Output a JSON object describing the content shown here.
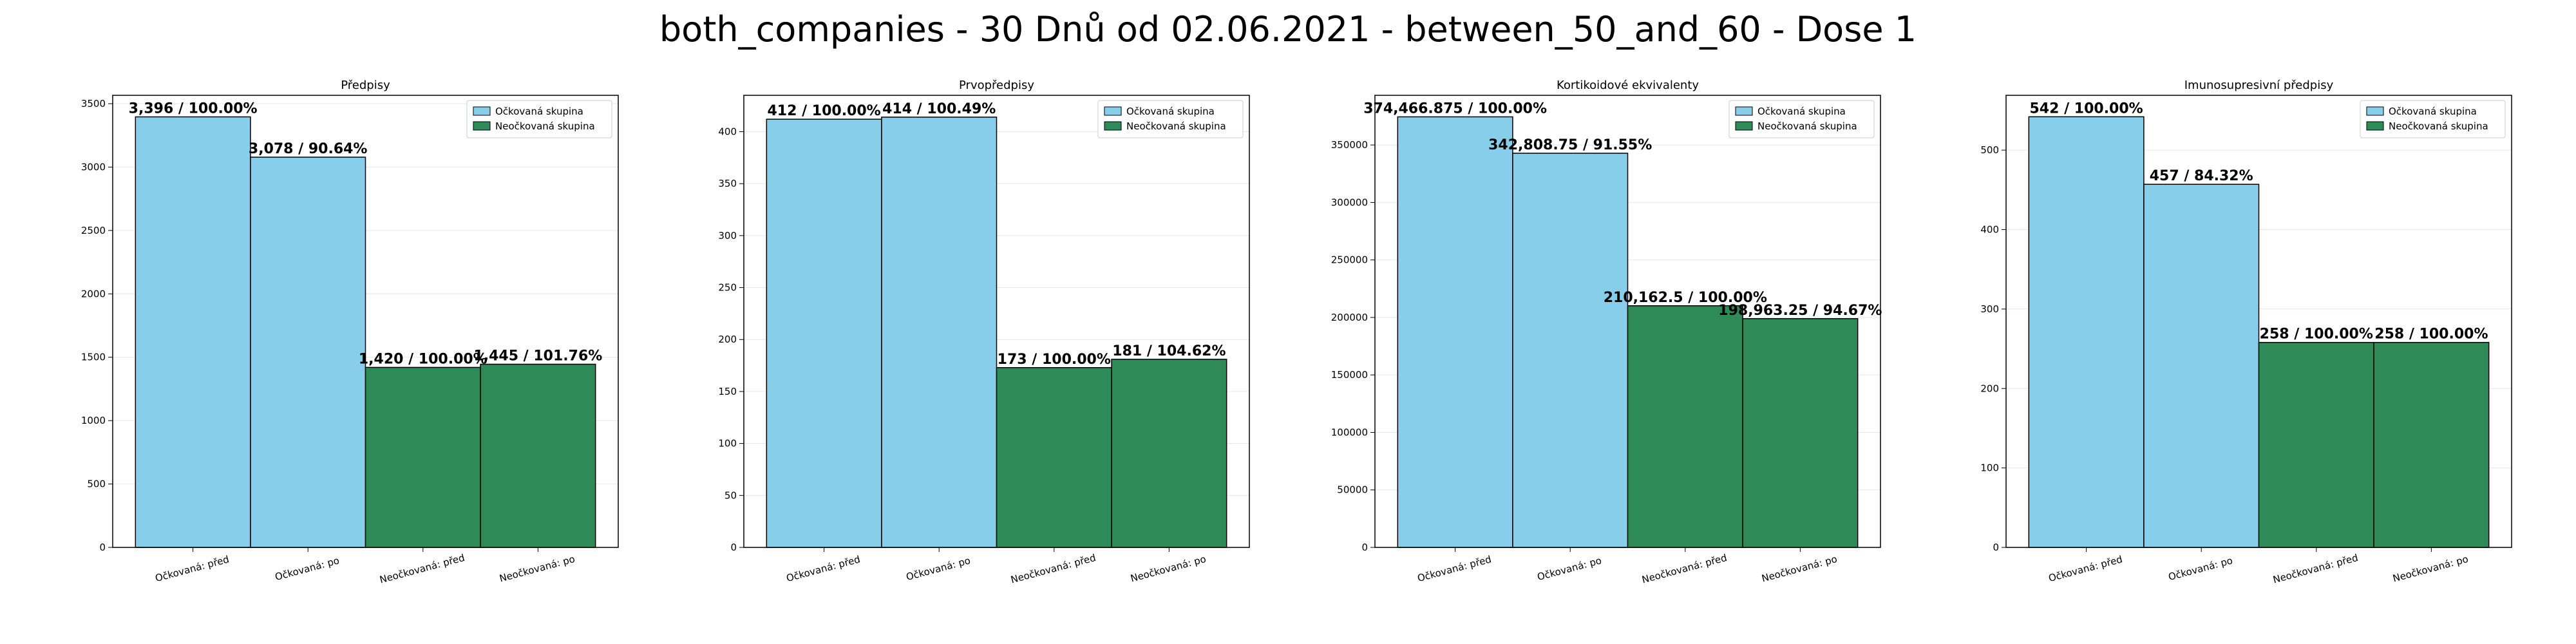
{
  "suptitle": "both_companies - 30 Dnů od 02.06.2021 - between_50_and_60 - Dose 1",
  "colors": {
    "vaccinated": "#87ceeb",
    "unvaccinated": "#2e8b57",
    "edge": "#000000",
    "grid": "#e6e6e6"
  },
  "chart_data": [
    {
      "type": "bar",
      "title": "Předpisy",
      "categories": [
        "Očkovaná: před",
        "Očkovaná: po",
        "Neočkovaná: před",
        "Neočkovaná: po"
      ],
      "values": [
        3396,
        3078,
        1420,
        1445
      ],
      "value_labels": [
        "3,396 / 100.00%",
        "3,078 / 90.64%",
        "1,420 / 100.00%",
        "1,445 / 101.76%"
      ],
      "bar_groups": [
        "vaccinated",
        "vaccinated",
        "unvaccinated",
        "unvaccinated"
      ],
      "legend": [
        "Očkovaná skupina",
        "Neočkovaná skupina"
      ],
      "legend_position": "upper right",
      "ylim": [
        0,
        3566
      ],
      "yticks": [
        0,
        500,
        1000,
        1500,
        2000,
        2500,
        3000,
        3500
      ],
      "ytick_labels": [
        "0",
        "500",
        "1000",
        "1500",
        "2000",
        "2500",
        "3000",
        "3500"
      ],
      "grid": "y"
    },
    {
      "type": "bar",
      "title": "Prvopředpisy",
      "categories": [
        "Očkovaná: před",
        "Očkovaná: po",
        "Neočkovaná: před",
        "Neočkovaná: po"
      ],
      "values": [
        412,
        414,
        173,
        181
      ],
      "value_labels": [
        "412 / 100.00%",
        "414 / 100.49%",
        "173 / 100.00%",
        "181 / 104.62%"
      ],
      "bar_groups": [
        "vaccinated",
        "vaccinated",
        "unvaccinated",
        "unvaccinated"
      ],
      "legend": [
        "Očkovaná skupina",
        "Neočkovaná skupina"
      ],
      "legend_position": "upper right",
      "ylim": [
        0,
        435
      ],
      "yticks": [
        0,
        50,
        100,
        150,
        200,
        250,
        300,
        350,
        400
      ],
      "ytick_labels": [
        "0",
        "50",
        "100",
        "150",
        "200",
        "250",
        "300",
        "350",
        "400"
      ],
      "grid": "y"
    },
    {
      "type": "bar",
      "title": "Kortikoidové ekvivalenty",
      "categories": [
        "Očkovaná: před",
        "Očkovaná: po",
        "Neočkovaná: před",
        "Neočkovaná: po"
      ],
      "values": [
        374466.875,
        342808.75,
        210162.5,
        198963.25
      ],
      "value_labels": [
        "374,466.875 / 100.00%",
        "342,808.75 / 91.55%",
        "210,162.5 / 100.00%",
        "198,963.25 / 94.67%"
      ],
      "bar_groups": [
        "vaccinated",
        "vaccinated",
        "unvaccinated",
        "unvaccinated"
      ],
      "legend": [
        "Očkovaná skupina",
        "Neočkovaná skupina"
      ],
      "legend_position": "upper right",
      "ylim": [
        0,
        393190
      ],
      "yticks": [
        0,
        50000,
        100000,
        150000,
        200000,
        250000,
        300000,
        350000
      ],
      "ytick_labels": [
        "0",
        "50000",
        "100000",
        "150000",
        "200000",
        "250000",
        "300000",
        "350000"
      ],
      "grid": "y"
    },
    {
      "type": "bar",
      "title": "Imunosupresivní předpisy",
      "categories": [
        "Očkovaná: před",
        "Očkovaná: po",
        "Neočkovaná: před",
        "Neočkovaná: po"
      ],
      "values": [
        542,
        457,
        258,
        258
      ],
      "value_labels": [
        "542 / 100.00%",
        "457 / 84.32%",
        "258 / 100.00%",
        "258 / 100.00%"
      ],
      "bar_groups": [
        "vaccinated",
        "vaccinated",
        "unvaccinated",
        "unvaccinated"
      ],
      "legend": [
        "Očkovaná skupina",
        "Neočkovaná skupina"
      ],
      "legend_position": "upper right",
      "ylim": [
        0,
        569
      ],
      "yticks": [
        0,
        100,
        200,
        300,
        400,
        500
      ],
      "ytick_labels": [
        "0",
        "100",
        "200",
        "300",
        "400",
        "500"
      ],
      "grid": "y"
    }
  ]
}
